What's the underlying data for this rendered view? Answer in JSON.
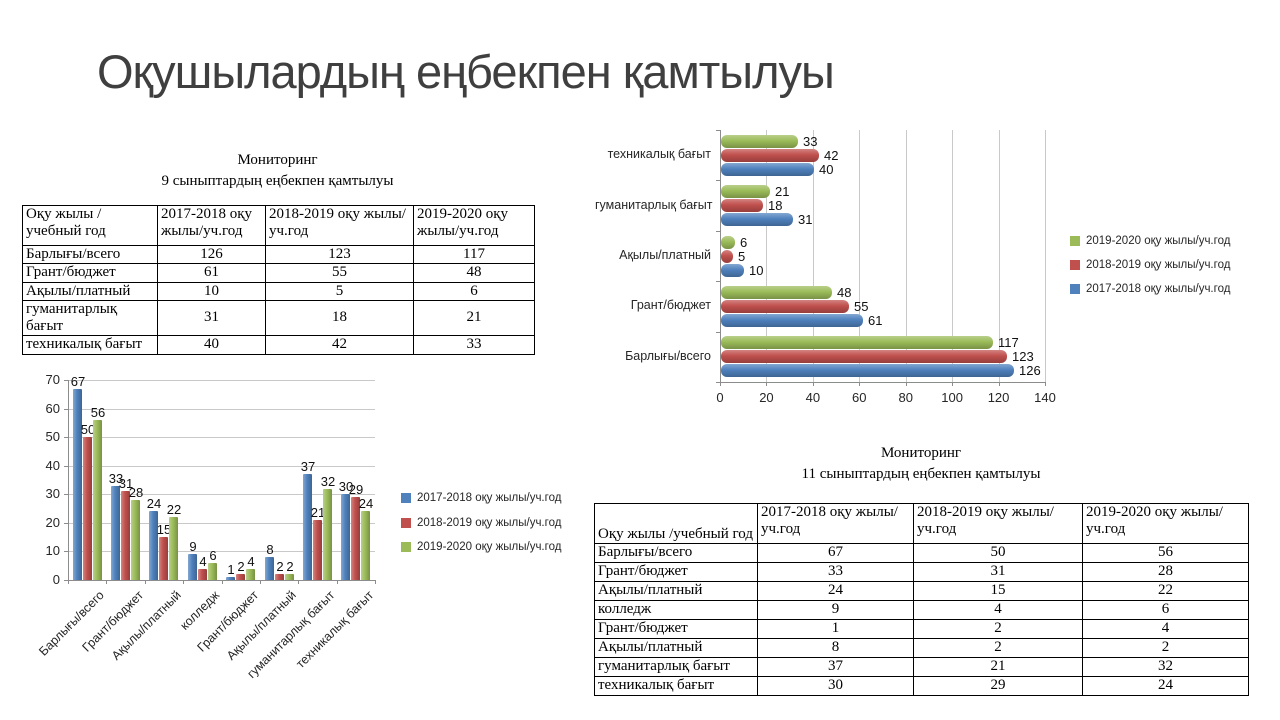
{
  "slide": {
    "title": "Оқушылардың еңбекпен қамтылуы"
  },
  "colors": {
    "y2017": "#4F81BD",
    "y2018": "#C0504D",
    "y2019": "#9BBB59"
  },
  "table9": {
    "caption_line1": "Мониторинг",
    "caption_line2": "9 сыныптардың еңбекпен қамтылуы",
    "headers": [
      "Оқу жылы /учебный год",
      "2017-2018  оқу жылы/уч.год",
      "2018-2019  оқу жылы/уч.год",
      "2019-2020  оқу жылы/уч.год"
    ],
    "rows": [
      [
        "Барлығы/всего",
        "126",
        "123",
        "117"
      ],
      [
        "Грант/бюджет",
        "61",
        "55",
        "48"
      ],
      [
        "Ақылы/платный",
        "10",
        "5",
        "6"
      ],
      [
        "гуманитарлық бағыт",
        "31",
        "18",
        "21"
      ],
      [
        "техникалық бағыт",
        "40",
        "42",
        "33"
      ]
    ]
  },
  "table11": {
    "caption_line1": "Мониторинг",
    "caption_line2": "11 сыныптардың еңбекпен қамтылуы",
    "headers": [
      "Оқу жылы /учебный год",
      "2017-2018  оқу жылы/уч.год",
      "2018-2019  оқу жылы/уч.год",
      "2019-2020  оқу жылы/уч.год"
    ],
    "rows": [
      [
        "Барлығы/всего",
        "67",
        "50",
        "56"
      ],
      [
        "Грант/бюджет",
        "33",
        "31",
        "28"
      ],
      [
        "Ақылы/платный",
        "24",
        "15",
        "22"
      ],
      [
        "колледж",
        "9",
        "4",
        "6"
      ],
      [
        "Грант/бюджет",
        "1",
        "2",
        "4"
      ],
      [
        "Ақылы/платный",
        "8",
        "2",
        "2"
      ],
      [
        "гуманитарлық бағыт",
        "37",
        "21",
        "32"
      ],
      [
        "техникалық бағыт",
        "30",
        "29",
        "24"
      ]
    ]
  },
  "chart_data": [
    {
      "type": "bar",
      "orientation": "horizontal",
      "title": "",
      "xlabel": "",
      "ylabel": "",
      "categories": [
        "Барлығы/всего",
        "Грант/бюджет",
        "Ақылы/платный",
        "гуманитарлық бағыт",
        "техникалық бағыт"
      ],
      "series": [
        {
          "name": "2017-2018 оқу жылы/уч.год",
          "color": "#4F81BD",
          "values": [
            126,
            61,
            10,
            31,
            40
          ]
        },
        {
          "name": "2018-2019 оқу жылы/уч.год",
          "color": "#C0504D",
          "values": [
            123,
            55,
            5,
            18,
            42
          ]
        },
        {
          "name": "2019-2020 оқу жылы/уч.год",
          "color": "#9BBB59",
          "values": [
            117,
            48,
            6,
            21,
            33
          ]
        }
      ],
      "xlim": [
        0,
        140
      ],
      "xticks": [
        0,
        20,
        40,
        60,
        80,
        100,
        120,
        140
      ],
      "grid": true,
      "data_labels": true,
      "legend_position": "right",
      "legend_order_reversed": true
    },
    {
      "type": "bar",
      "orientation": "vertical",
      "title": "",
      "xlabel": "",
      "ylabel": "",
      "categories": [
        "Барлығы/всего",
        "Грант/бюджет",
        "Ақылы/платный",
        "колледж",
        "Грант/бюджет",
        "Ақылы/платный",
        "гуманитарлық бағыт",
        "техникалық бағыт"
      ],
      "series": [
        {
          "name": "2017-2018 оқу жылы/уч.год",
          "color": "#4F81BD",
          "values": [
            67,
            33,
            24,
            9,
            1,
            8,
            37,
            30
          ]
        },
        {
          "name": "2018-2019 оқу жылы/уч.год",
          "color": "#C0504D",
          "values": [
            50,
            31,
            15,
            4,
            2,
            2,
            21,
            29
          ]
        },
        {
          "name": "2019-2020 оқу жылы/уч.год",
          "color": "#9BBB59",
          "values": [
            56,
            28,
            22,
            6,
            4,
            2,
            32,
            24
          ]
        }
      ],
      "ylim": [
        0,
        70
      ],
      "yticks": [
        0,
        10,
        20,
        30,
        40,
        50,
        60,
        70
      ],
      "grid": true,
      "data_labels": true,
      "legend_position": "right",
      "legend_order_reversed": false
    }
  ]
}
